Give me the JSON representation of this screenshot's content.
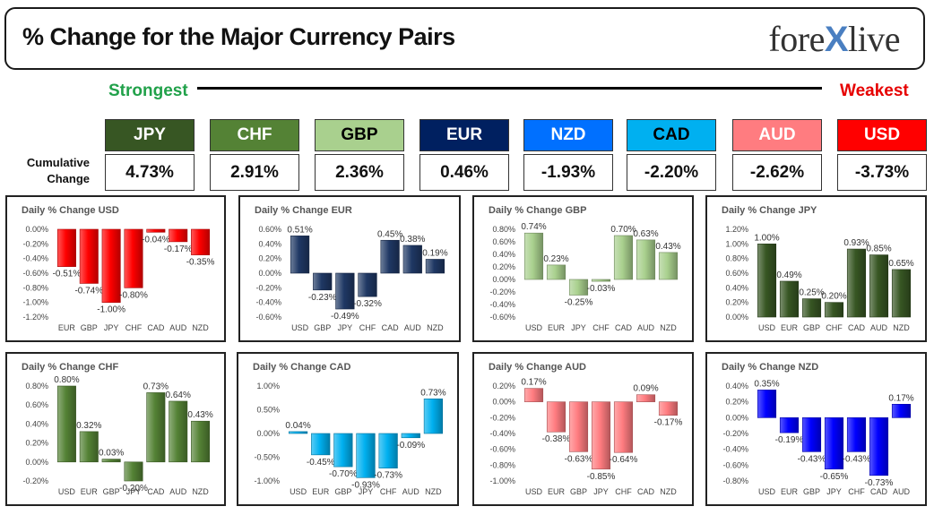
{
  "header": {
    "title": "% Change for the Major Currency Pairs",
    "logo_left": "fore",
    "logo_x": "X",
    "logo_right": "live"
  },
  "ranking": {
    "strongest_label": "Strongest",
    "weakest_label": "Weakest",
    "cumulative_label_line1": "Cumulative",
    "cumulative_label_line2": "Change",
    "currencies": [
      {
        "code": "JPY",
        "value": "4.73%",
        "color": "#375623",
        "text_color": "#ffffff"
      },
      {
        "code": "CHF",
        "value": "2.91%",
        "color": "#548235",
        "text_color": "#ffffff"
      },
      {
        "code": "GBP",
        "value": "2.36%",
        "color": "#a9d08e",
        "text_color": "#000000"
      },
      {
        "code": "EUR",
        "value": "0.46%",
        "color": "#002060",
        "text_color": "#ffffff"
      },
      {
        "code": "NZD",
        "value": "-1.93%",
        "color": "#0070ff",
        "text_color": "#ffffff"
      },
      {
        "code": "CAD",
        "value": "-2.20%",
        "color": "#00b0f0",
        "text_color": "#000000"
      },
      {
        "code": "AUD",
        "value": "-2.62%",
        "color": "#ff7c80",
        "text_color": "#ffffff"
      },
      {
        "code": "USD",
        "value": "-3.73%",
        "color": "#ff0000",
        "text_color": "#ffffff"
      }
    ]
  },
  "chart_data": [
    {
      "type": "bar",
      "title": "Daily % Change USD",
      "categories": [
        "EUR",
        "GBP",
        "JPY",
        "CHF",
        "CAD",
        "AUD",
        "NZD"
      ],
      "values": [
        -0.51,
        -0.74,
        -1.0,
        -0.8,
        -0.04,
        -0.17,
        -0.35
      ],
      "labels": [
        "-0.51%",
        "-0.74%",
        "-1.00%",
        "-0.80%",
        "-0.04%",
        "-0.17%",
        "-0.35%"
      ],
      "ylim": [
        -1.2,
        0.0
      ],
      "yticks": [
        "0.00%",
        "-0.20%",
        "-0.40%",
        "-0.60%",
        "-0.80%",
        "-1.00%",
        "-1.20%"
      ],
      "color": "#ff0000"
    },
    {
      "type": "bar",
      "title": "Daily % Change EUR",
      "categories": [
        "USD",
        "GBP",
        "JPY",
        "CHF",
        "CAD",
        "AUD",
        "NZD"
      ],
      "values": [
        0.51,
        -0.23,
        -0.49,
        -0.32,
        0.45,
        0.38,
        0.19
      ],
      "labels": [
        "0.51%",
        "-0.23%",
        "-0.49%",
        "-0.32%",
        "0.45%",
        "0.38%",
        "0.19%"
      ],
      "ylim": [
        -0.6,
        0.6
      ],
      "yticks": [
        "0.60%",
        "0.40%",
        "0.20%",
        "0.00%",
        "-0.20%",
        "-0.40%",
        "-0.60%"
      ],
      "color": "#1f3864"
    },
    {
      "type": "bar",
      "title": "Daily % Change GBP",
      "categories": [
        "USD",
        "EUR",
        "JPY",
        "CHF",
        "CAD",
        "AUD",
        "NZD"
      ],
      "values": [
        0.74,
        0.23,
        -0.25,
        -0.03,
        0.7,
        0.63,
        0.43
      ],
      "labels": [
        "0.74%",
        "0.23%",
        "-0.25%",
        "-0.03%",
        "0.70%",
        "0.63%",
        "0.43%"
      ],
      "ylim": [
        -0.6,
        0.8
      ],
      "yticks": [
        "0.80%",
        "0.60%",
        "0.40%",
        "0.20%",
        "0.00%",
        "-0.20%",
        "-0.40%",
        "-0.60%"
      ],
      "color": "#a9d08e"
    },
    {
      "type": "bar",
      "title": "Daily % Change JPY",
      "categories": [
        "USD",
        "EUR",
        "GBP",
        "CHF",
        "CAD",
        "AUD",
        "NZD"
      ],
      "values": [
        1.0,
        0.49,
        0.25,
        0.2,
        0.93,
        0.85,
        0.65
      ],
      "labels": [
        "1.00%",
        "0.49%",
        "0.25%",
        "0.20%",
        "0.93%",
        "0.85%",
        "0.65%"
      ],
      "ylim": [
        0.0,
        1.2
      ],
      "yticks": [
        "1.20%",
        "1.00%",
        "0.80%",
        "0.60%",
        "0.40%",
        "0.20%",
        "0.00%"
      ],
      "color": "#375623"
    },
    {
      "type": "bar",
      "title": "Daily % Change CHF",
      "categories": [
        "USD",
        "EUR",
        "GBP",
        "JPY",
        "CAD",
        "AUD",
        "NZD"
      ],
      "values": [
        0.8,
        0.32,
        0.03,
        -0.2,
        0.73,
        0.64,
        0.43
      ],
      "labels": [
        "0.80%",
        "0.32%",
        "0.03%",
        "-0.20%",
        "0.73%",
        "0.64%",
        "0.43%"
      ],
      "ylim": [
        -0.2,
        0.8
      ],
      "yticks": [
        "0.80%",
        "0.60%",
        "0.40%",
        "0.20%",
        "0.00%",
        "-0.20%"
      ],
      "color": "#548235"
    },
    {
      "type": "bar",
      "title": "Daily % Change CAD",
      "categories": [
        "USD",
        "EUR",
        "GBP",
        "JPY",
        "CHF",
        "AUD",
        "NZD"
      ],
      "values": [
        0.04,
        -0.45,
        -0.7,
        -0.93,
        -0.73,
        -0.09,
        0.73
      ],
      "labels": [
        "0.04%",
        "-0.45%",
        "-0.70%",
        "-0.93%",
        "-0.73%",
        "-0.09%",
        "0.73%"
      ],
      "ylim": [
        -1.0,
        1.0
      ],
      "yticks": [
        "1.00%",
        "0.50%",
        "0.00%",
        "-0.50%",
        "-1.00%"
      ],
      "color": "#00b0f0"
    },
    {
      "type": "bar",
      "title": "Daily % Change AUD",
      "categories": [
        "USD",
        "EUR",
        "GBP",
        "JPY",
        "CHF",
        "CAD",
        "NZD"
      ],
      "values": [
        0.17,
        -0.38,
        -0.63,
        -0.85,
        -0.64,
        0.09,
        -0.17
      ],
      "labels": [
        "0.17%",
        "-0.38%",
        "-0.63%",
        "-0.85%",
        "-0.64%",
        "0.09%",
        "-0.17%"
      ],
      "ylim": [
        -1.0,
        0.2
      ],
      "yticks": [
        "0.20%",
        "0.00%",
        "-0.20%",
        "-0.40%",
        "-0.60%",
        "-0.80%",
        "-1.00%"
      ],
      "color": "#ff7c80"
    },
    {
      "type": "bar",
      "title": "Daily % Change NZD",
      "categories": [
        "USD",
        "EUR",
        "GBP",
        "JPY",
        "CHF",
        "CAD",
        "AUD"
      ],
      "values": [
        0.35,
        -0.19,
        -0.43,
        -0.65,
        -0.43,
        -0.73,
        0.17
      ],
      "labels": [
        "0.35%",
        "-0.19%",
        "-0.43%",
        "-0.65%",
        "-0.43%",
        "-0.73%",
        "0.17%"
      ],
      "ylim": [
        -0.8,
        0.4
      ],
      "yticks": [
        "0.40%",
        "0.20%",
        "0.00%",
        "-0.20%",
        "-0.40%",
        "-0.60%",
        "-0.80%"
      ],
      "color": "#0000ff"
    }
  ]
}
